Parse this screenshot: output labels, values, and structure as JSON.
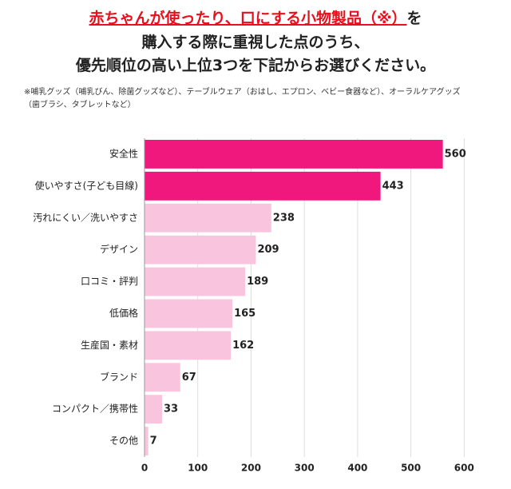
{
  "chart_data": {
    "type": "barh",
    "title": [
      "赤ちゃんが使ったり、口にする小物製品（※）",
      "を",
      "購入する際に重視した点のうち、",
      "優先順位の高い上位3つを下記からお選びください。"
    ],
    "note": "※哺乳グッズ（哺乳びん、除菌グッズなど）、テーブルウェア（おはし、エプロン、ベビー食器など）、オーラルケアグッズ（歯ブラシ、タブレットなど）",
    "categories": [
      "安全性",
      "使いやすさ(子ども目線)",
      "汚れにくい／洗いやすさ",
      "デザイン",
      "口コミ・評判",
      "低価格",
      "生産国・素材",
      "ブランド",
      "コンパクト／携帯性",
      "その他"
    ],
    "values": [
      560,
      443,
      238,
      209,
      189,
      165,
      162,
      67,
      33,
      7
    ],
    "colors": [
      "#f0187c",
      "#f0187c",
      "#f9c5de",
      "#f9c5de",
      "#f9c5de",
      "#f9c5de",
      "#f9c5de",
      "#f9c5de",
      "#f9c5de",
      "#f9c5de"
    ],
    "xlim": [
      0,
      625
    ],
    "xticks": [
      0,
      100,
      200,
      300,
      400,
      500,
      600
    ],
    "grid": true
  }
}
